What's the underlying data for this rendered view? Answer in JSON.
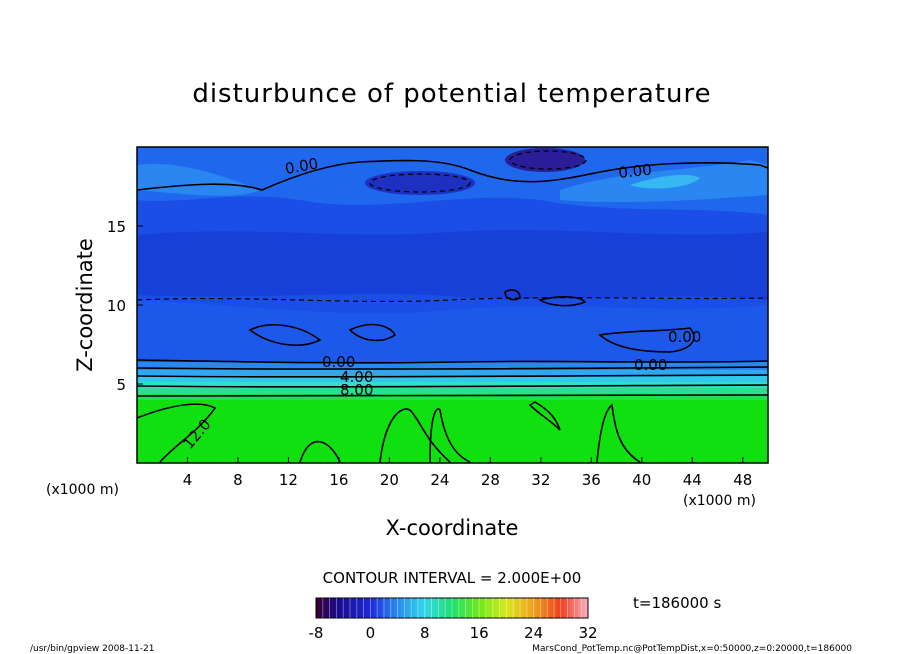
{
  "chart_data": {
    "type": "heatmap",
    "title": "disturbunce of potential temperature",
    "xlabel": "X-coordinate",
    "ylabel": "Z-coordinate",
    "x_unit": "(x1000 m)",
    "z_unit": "(x1000 m)",
    "xlim": [
      0,
      50
    ],
    "ylim": [
      0,
      20
    ],
    "x_ticks": [
      "4",
      "8",
      "12",
      "16",
      "20",
      "24",
      "28",
      "32",
      "36",
      "40",
      "44",
      "48"
    ],
    "y_ticks": [
      "5",
      "10",
      "15"
    ],
    "contour_labels": [
      "0.00",
      "0.00",
      "0.00",
      "0.00",
      "4.00",
      "8.00",
      "12.0",
      "0.00"
    ],
    "contour_interval": "CONTOUR INTERVAL = 2.000E+00",
    "colorbar": {
      "min": -8,
      "max": 32,
      "tick_labels": [
        "-8",
        "0",
        "8",
        "16",
        "24",
        "32"
      ]
    },
    "time_label": "t=186000 s",
    "colors": {
      "ground": "#10e010",
      "atmosphere": "#1850e8",
      "upper": "#1e6ef0",
      "negative": "#1a1aa8"
    }
  },
  "footer": {
    "left": "/usr/bin/gpview  2008-11-21",
    "right": "MarsCond_PotTemp.nc@PotTempDist,x=0:50000,z=0:20000,t=186000"
  }
}
